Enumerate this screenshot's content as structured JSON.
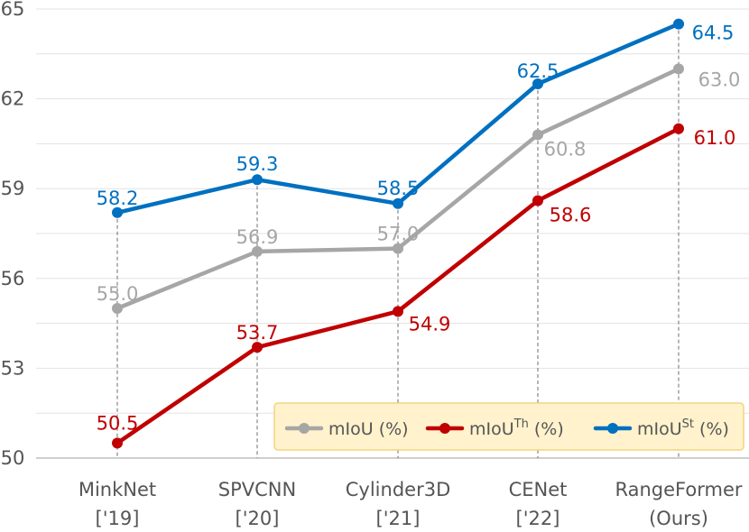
{
  "chart_data": {
    "type": "line",
    "categories": [
      {
        "name": "MinkNet",
        "year": "['19]"
      },
      {
        "name": "SPVCNN",
        "year": "['20]"
      },
      {
        "name": "Cylinder3D",
        "year": "['21]"
      },
      {
        "name": "CENet",
        "year": "['22]"
      },
      {
        "name": "RangeFormer",
        "year": "(Ours)"
      }
    ],
    "ylim": [
      50,
      65
    ],
    "yticks": [
      50,
      53,
      56,
      59,
      62,
      65
    ],
    "grid": "horizontal",
    "legend_position": "bottom-right",
    "series": [
      {
        "name": "mIoU (%)",
        "legend_base": "mIoU",
        "legend_sup": "",
        "legend_suffix": " (%)",
        "color": "#A6A6A6",
        "values": [
          55.0,
          56.9,
          57.0,
          60.8,
          63.0
        ],
        "labels": [
          "55.0",
          "56.9",
          "57.0",
          "60.8",
          "63.0"
        ]
      },
      {
        "name": "mIoU^Th (%)",
        "legend_base": "mIoU",
        "legend_sup": "Th",
        "legend_suffix": " (%)",
        "color": "#C00000",
        "values": [
          50.5,
          53.7,
          54.9,
          58.6,
          61.0
        ],
        "labels": [
          "50.5",
          "53.7",
          "54.9",
          "58.6",
          "61.0"
        ]
      },
      {
        "name": "mIoU^St (%)",
        "legend_base": "mIoU",
        "legend_sup": "St",
        "legend_suffix": " (%)",
        "color": "#0070C0",
        "values": [
          58.2,
          59.3,
          58.5,
          62.5,
          64.5
        ],
        "labels": [
          "58.2",
          "59.3",
          "58.5",
          "62.5",
          "64.5"
        ]
      }
    ]
  }
}
